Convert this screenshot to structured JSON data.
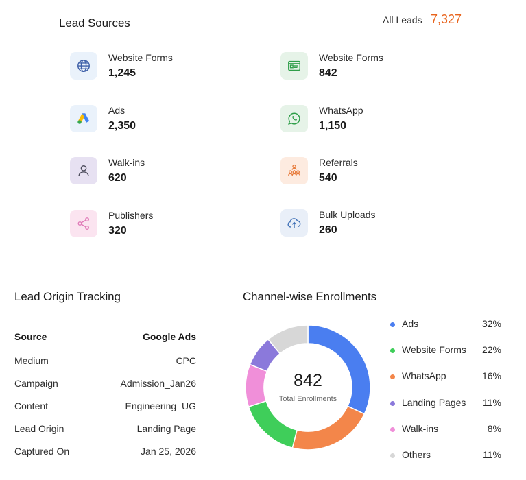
{
  "lead_sources": {
    "title": "Lead Sources",
    "all_leads_label": "All Leads",
    "all_leads_value": "7,327",
    "items": [
      {
        "label": "Website Forms",
        "count": "1,245",
        "icon": "globe-icon",
        "icon_bg": "#eaf2fb",
        "icon_color": "#3d5fa8"
      },
      {
        "label": "Website Forms",
        "count": "842",
        "icon": "form-card-icon",
        "icon_bg": "#e6f3e8",
        "icon_color": "#2e9e48"
      },
      {
        "label": "Ads",
        "count": "2,350",
        "icon": "google-ads-icon",
        "icon_bg": "#eaf2fb",
        "icon_color": "#4285f4"
      },
      {
        "label": "WhatsApp",
        "count": "1,150",
        "icon": "whatsapp-icon",
        "icon_bg": "#e6f3e8",
        "icon_color": "#2e9e48"
      },
      {
        "label": "Walk-ins",
        "count": "620",
        "icon": "person-icon",
        "icon_bg": "#e7e1f2",
        "icon_color": "#4a4a5a"
      },
      {
        "label": "Referrals",
        "count": "540",
        "icon": "referral-network-icon",
        "icon_bg": "#fdebe0",
        "icon_color": "#e77a3a"
      },
      {
        "label": "Publishers",
        "count": "320",
        "icon": "share-icon",
        "icon_bg": "#fbe4f0",
        "icon_color": "#e07ab8"
      },
      {
        "label": "Bulk Uploads",
        "count": "260",
        "icon": "cloud-upload-icon",
        "icon_bg": "#e9eff8",
        "icon_color": "#3d6fb6"
      }
    ]
  },
  "lead_origin": {
    "title": "Lead Origin Tracking",
    "rows": [
      {
        "key": "Source",
        "value": "Google Ads"
      },
      {
        "key": "Medium",
        "value": "CPC"
      },
      {
        "key": "Campaign",
        "value": "Admission_Jan26"
      },
      {
        "key": "Content",
        "value": "Engineering_UG"
      },
      {
        "key": "Lead Origin",
        "value": "Landing Page"
      },
      {
        "key": "Captured On",
        "value": "Jan 25, 2026"
      }
    ]
  },
  "enrollments": {
    "title": "Channel-wise Enrollments",
    "center_value": "842",
    "center_label": "Total Enrollments",
    "legend": [
      {
        "name": "Ads",
        "pct": "32%"
      },
      {
        "name": "Website Forms",
        "pct": "22%"
      },
      {
        "name": "WhatsApp",
        "pct": "16%"
      },
      {
        "name": "Landing Pages",
        "pct": "11%"
      },
      {
        "name": "Walk-ins",
        "pct": "8%"
      },
      {
        "name": "Others",
        "pct": "11%"
      }
    ]
  },
  "chart_data": {
    "type": "pie",
    "title": "Channel-wise Enrollments",
    "categories": [
      "Ads",
      "Website Forms",
      "WhatsApp",
      "Landing Pages",
      "Walk-ins",
      "Others"
    ],
    "values": [
      32,
      22,
      16,
      11,
      8,
      11
    ],
    "colors": [
      "#4a7ef0",
      "#f3864a",
      "#3fce5a",
      "#f08fd9",
      "#8b79db",
      "#d7d7d7"
    ],
    "legend_dot_colors": [
      "#4a7ef0",
      "#3fce5a",
      "#f3864a",
      "#8b79db",
      "#f08fd9",
      "#d7d7d7"
    ],
    "donut": true,
    "legend": "right"
  }
}
